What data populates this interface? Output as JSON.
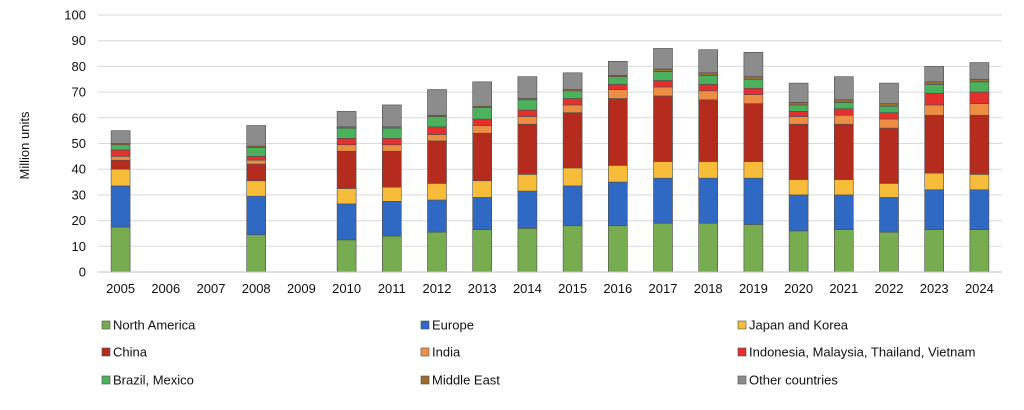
{
  "chart_data": {
    "type": "bar",
    "stacked": true,
    "ylabel": "Million units",
    "xlabel": "",
    "ylim": [
      0,
      100
    ],
    "yticks": [
      0,
      10,
      20,
      30,
      40,
      50,
      60,
      70,
      80,
      90,
      100
    ],
    "grid": true,
    "legend_position": "bottom",
    "categories": [
      "2005",
      "2006",
      "2007",
      "2008",
      "2009",
      "2010",
      "2011",
      "2012",
      "2013",
      "2014",
      "2015",
      "2016",
      "2017",
      "2018",
      "2019",
      "2020",
      "2021",
      "2022",
      "2023",
      "2024"
    ],
    "series": [
      {
        "name": "North America",
        "color": "#77ac50",
        "values": [
          17.5,
          null,
          null,
          14.5,
          null,
          12.5,
          14,
          15.5,
          16.5,
          17,
          18,
          18,
          19,
          19,
          18.5,
          16,
          16.5,
          15.5,
          16.5,
          16.5
        ]
      },
      {
        "name": "Europe",
        "color": "#3069c4",
        "values": [
          16,
          null,
          null,
          15,
          null,
          14,
          13.5,
          12.5,
          12.5,
          14.5,
          15.5,
          17,
          17.5,
          17.5,
          18,
          14,
          13.5,
          13.5,
          15.5,
          15.5
        ]
      },
      {
        "name": "Japan and Korea",
        "color": "#f7bd3a",
        "values": [
          6.5,
          null,
          null,
          6,
          null,
          6,
          5.5,
          6.5,
          6.5,
          6.5,
          7,
          6.5,
          6.5,
          6.5,
          6.5,
          6,
          6,
          5.5,
          6.5,
          6
        ]
      },
      {
        "name": "China",
        "color": "#b52c1f",
        "values": [
          3.5,
          null,
          null,
          6.5,
          null,
          14.5,
          14,
          16.5,
          18.5,
          19.5,
          21.5,
          26,
          25.5,
          24,
          22.5,
          21.5,
          21.5,
          21.5,
          22.5,
          23
        ]
      },
      {
        "name": "India",
        "color": "#ec8f45",
        "values": [
          1.5,
          null,
          null,
          1.5,
          null,
          2.5,
          2.5,
          2.5,
          3,
          3,
          3,
          3.5,
          3.5,
          3.5,
          3.5,
          3,
          3.5,
          3.5,
          4,
          4.5
        ]
      },
      {
        "name": "Indonesia, Malaysia, Thailand, Vietnam",
        "color": "#e3302f",
        "values": [
          2.5,
          null,
          null,
          1.5,
          null,
          2.5,
          2.5,
          3,
          2.5,
          2.5,
          2.5,
          2,
          2.5,
          2.5,
          2.5,
          2,
          2.5,
          2.5,
          4.5,
          4.5
        ]
      },
      {
        "name": "Brazil, Mexico",
        "color": "#4bb15c",
        "values": [
          2,
          null,
          null,
          3.5,
          null,
          4,
          4,
          4,
          4.5,
          4,
          3,
          3,
          3.5,
          3.5,
          3.5,
          2.5,
          2.5,
          2.5,
          3.5,
          4
        ]
      },
      {
        "name": "Middle East",
        "color": "#9a6e2e",
        "values": [
          0.5,
          null,
          null,
          0.5,
          null,
          0.5,
          0.5,
          0.5,
          0.5,
          0.5,
          0.5,
          0.5,
          1,
          1,
          1,
          1,
          1,
          1,
          1,
          1
        ]
      },
      {
        "name": "Other countries",
        "color": "#8c8c8c",
        "values": [
          5,
          null,
          null,
          8,
          null,
          6,
          8.5,
          10,
          9.5,
          8.5,
          6.5,
          5.5,
          8,
          9,
          9.5,
          7.5,
          9,
          8,
          6,
          6.5
        ]
      }
    ]
  }
}
